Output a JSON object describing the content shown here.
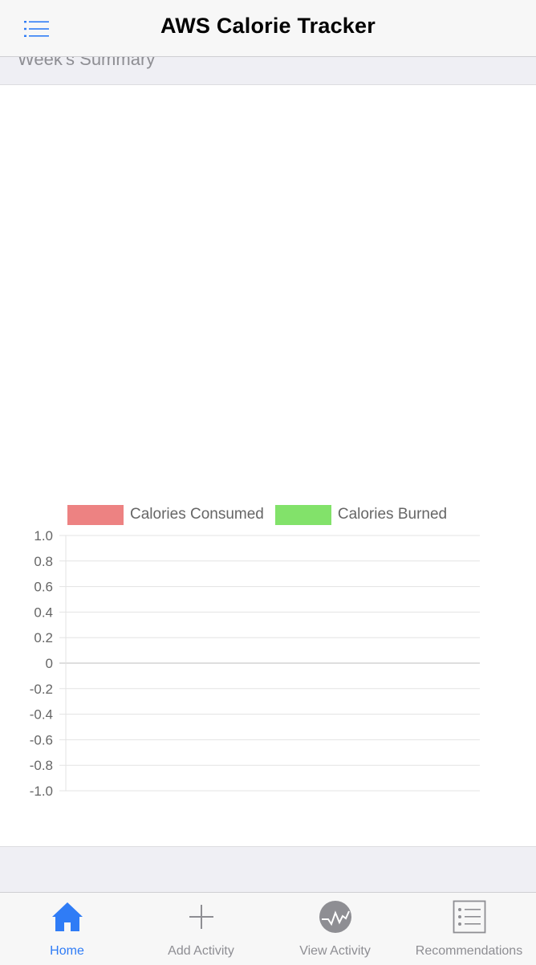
{
  "navbar": {
    "title": "AWS Calorie Tracker",
    "menu_icon": "list-menu-icon"
  },
  "section": {
    "header": "Week's Summary"
  },
  "chart_data": {
    "type": "bar",
    "title": "",
    "xlabel": "",
    "ylabel": "",
    "categories": [],
    "series": [
      {
        "name": "Calories Consumed",
        "color": "#ed8282",
        "values": []
      },
      {
        "name": "Calories Burned",
        "color": "#82e26a",
        "values": []
      }
    ],
    "ylim": [
      -1.0,
      1.0
    ],
    "yticks": [
      "1.0",
      "0.8",
      "0.6",
      "0.4",
      "0.2",
      "0",
      "-0.2",
      "-0.4",
      "-0.6",
      "-0.8",
      "-1.0"
    ],
    "grid": true,
    "legend_position": "top"
  },
  "tabbar": {
    "tabs": [
      {
        "label": "Home",
        "icon": "home-icon",
        "active": true
      },
      {
        "label": "Add Activity",
        "icon": "plus-icon",
        "active": false
      },
      {
        "label": "View Activity",
        "icon": "activity-pulse-icon",
        "active": false
      },
      {
        "label": "Recommendations",
        "icon": "checklist-icon",
        "active": false
      }
    ]
  },
  "colors": {
    "accent": "#2f7cf6",
    "inactive": "#8e8e93",
    "consumed": "#ed8282",
    "burned": "#82e26a"
  }
}
